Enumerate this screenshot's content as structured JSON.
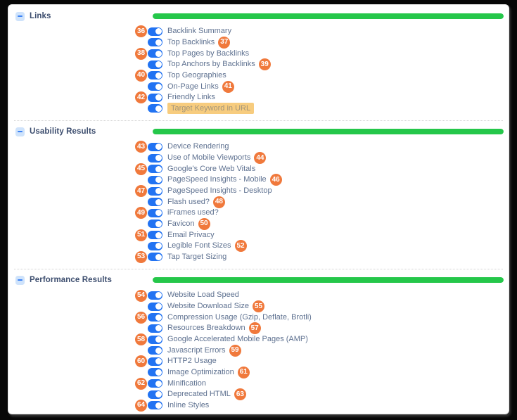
{
  "colors": {
    "toggle_on": "#2273f2",
    "badge": "#f0793c",
    "progress": "#25c74a",
    "label_text": "#5e7190",
    "section_title_text": "#3c4d6e",
    "highlight_bg": "#f7cc7e"
  },
  "sections": [
    {
      "title": "Links",
      "progress_percent": 100,
      "items": [
        {
          "num": "36",
          "badge_pos": "left",
          "label": "Backlink Summary",
          "toggle_on": true,
          "highlighted": false
        },
        {
          "num": "37",
          "badge_pos": "right",
          "label": "Top Backlinks",
          "toggle_on": true,
          "highlighted": false
        },
        {
          "num": "38",
          "badge_pos": "left",
          "label": "Top Pages by Backlinks",
          "toggle_on": true,
          "highlighted": false
        },
        {
          "num": "39",
          "badge_pos": "right",
          "label": "Top Anchors by Backlinks",
          "toggle_on": true,
          "highlighted": false
        },
        {
          "num": "40",
          "badge_pos": "left",
          "label": "Top Geographies",
          "toggle_on": true,
          "highlighted": false
        },
        {
          "num": "41",
          "badge_pos": "right",
          "label": "On-Page Links",
          "toggle_on": true,
          "highlighted": false
        },
        {
          "num": "42",
          "badge_pos": "left",
          "label": "Friendly Links",
          "toggle_on": true,
          "highlighted": false
        },
        {
          "num": "",
          "badge_pos": "none",
          "label": "Target Keyword in URL",
          "toggle_on": true,
          "highlighted": true
        }
      ]
    },
    {
      "title": "Usability Results",
      "progress_percent": 100,
      "items": [
        {
          "num": "43",
          "badge_pos": "left",
          "label": "Device Rendering",
          "toggle_on": true,
          "highlighted": false
        },
        {
          "num": "44",
          "badge_pos": "right",
          "label": "Use of Mobile Viewports",
          "toggle_on": true,
          "highlighted": false
        },
        {
          "num": "45",
          "badge_pos": "left",
          "label": "Google's Core Web Vitals",
          "toggle_on": true,
          "highlighted": false
        },
        {
          "num": "46",
          "badge_pos": "right",
          "label": "PageSpeed Insights - Mobile",
          "toggle_on": true,
          "highlighted": false
        },
        {
          "num": "47",
          "badge_pos": "left",
          "label": "PageSpeed Insights - Desktop",
          "toggle_on": true,
          "highlighted": false
        },
        {
          "num": "48",
          "badge_pos": "right",
          "label": "Flash used?",
          "toggle_on": true,
          "highlighted": false
        },
        {
          "num": "49",
          "badge_pos": "left",
          "label": "iFrames used?",
          "toggle_on": true,
          "highlighted": false
        },
        {
          "num": "50",
          "badge_pos": "right",
          "label": "Favicon",
          "toggle_on": true,
          "highlighted": false
        },
        {
          "num": "51",
          "badge_pos": "left",
          "label": "Email Privacy",
          "toggle_on": true,
          "highlighted": false
        },
        {
          "num": "52",
          "badge_pos": "right",
          "label": "Legible Font Sizes",
          "toggle_on": true,
          "highlighted": false
        },
        {
          "num": "53",
          "badge_pos": "left",
          "label": "Tap Target Sizing",
          "toggle_on": true,
          "highlighted": false
        }
      ]
    },
    {
      "title": "Performance Results",
      "progress_percent": 100,
      "items": [
        {
          "num": "54",
          "badge_pos": "left",
          "label": "Website Load Speed",
          "toggle_on": true,
          "highlighted": false
        },
        {
          "num": "55",
          "badge_pos": "right",
          "label": "Website Download Size",
          "toggle_on": true,
          "highlighted": false
        },
        {
          "num": "56",
          "badge_pos": "left",
          "label": "Compression Usage (Gzip, Deflate, Brotli)",
          "toggle_on": true,
          "highlighted": false
        },
        {
          "num": "57",
          "badge_pos": "right",
          "label": "Resources Breakdown",
          "toggle_on": true,
          "highlighted": false
        },
        {
          "num": "58",
          "badge_pos": "left",
          "label": "Google Accelerated Mobile Pages (AMP)",
          "toggle_on": true,
          "highlighted": false
        },
        {
          "num": "59",
          "badge_pos": "right",
          "label": "Javascript Errors",
          "toggle_on": true,
          "highlighted": false
        },
        {
          "num": "60",
          "badge_pos": "left",
          "label": "HTTP2 Usage",
          "toggle_on": true,
          "highlighted": false
        },
        {
          "num": "61",
          "badge_pos": "right",
          "label": "Image Optimization",
          "toggle_on": true,
          "highlighted": false
        },
        {
          "num": "62",
          "badge_pos": "left",
          "label": "Minification",
          "toggle_on": true,
          "highlighted": false
        },
        {
          "num": "63",
          "badge_pos": "right",
          "label": "Deprecated HTML",
          "toggle_on": true,
          "highlighted": false
        },
        {
          "num": "64",
          "badge_pos": "left",
          "label": "Inline Styles",
          "toggle_on": true,
          "highlighted": false
        }
      ]
    }
  ]
}
